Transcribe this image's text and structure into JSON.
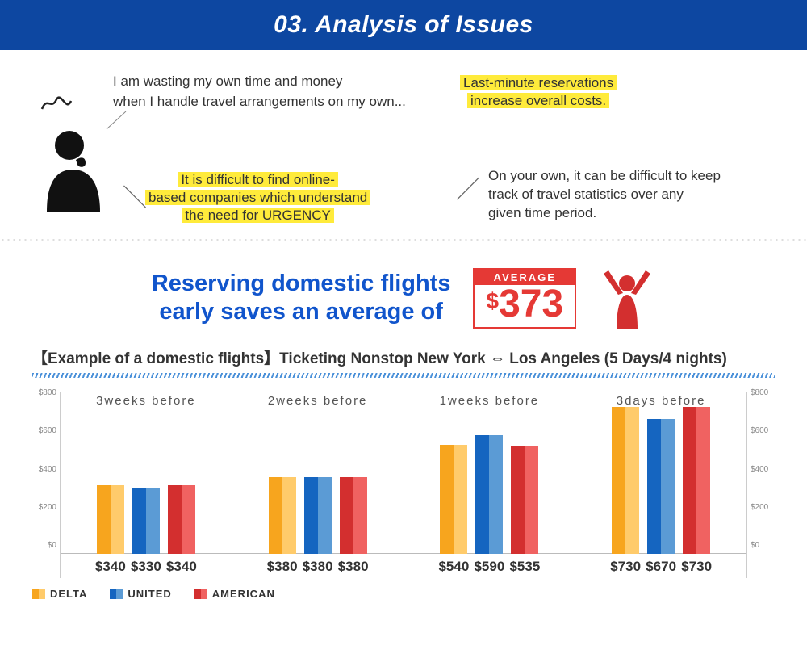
{
  "header": {
    "title": "03. Analysis of Issues"
  },
  "issues": {
    "speech1_l1": "I am wasting my own time and money",
    "speech1_l2": "when I handle travel arrangements on my own...",
    "speech2_l1": "It is difficult to find online-",
    "speech2_l2": "based companies which understand",
    "speech2_l3": "the need for URGENCY",
    "speech3_l1": "Last-minute reservations",
    "speech3_l2": "increase overall costs.",
    "speech4_l1": "On your own, it can be difficult to keep",
    "speech4_l2": "track of travel statistics over any",
    "speech4_l3": "given time period."
  },
  "savings": {
    "line1": "Reserving domestic flights",
    "line2": "early saves an average of",
    "badge_label": "AVERAGE",
    "currency": "$",
    "amount": "373"
  },
  "example": {
    "heading": "【Example of a domestic flights】Ticketing Nonstop New York ⇔ Los Angeles (5 Days/4 nights)"
  },
  "chart": {
    "type": "bar",
    "ymax": 800,
    "ytick_step": 200,
    "yticks": [
      "$800",
      "$600",
      "$400",
      "$200",
      "$0"
    ],
    "series_colors": {
      "delta": "#f7a51e",
      "united": "#1565c0",
      "american": "#d32f2f"
    },
    "groups": [
      {
        "title": "3weeks before",
        "bars": [
          {
            "series": "delta",
            "value": 340,
            "label": "$340"
          },
          {
            "series": "united",
            "value": 330,
            "label": "$330"
          },
          {
            "series": "american",
            "value": 340,
            "label": "$340"
          }
        ]
      },
      {
        "title": "2weeks before",
        "bars": [
          {
            "series": "delta",
            "value": 380,
            "label": "$380"
          },
          {
            "series": "united",
            "value": 380,
            "label": "$380"
          },
          {
            "series": "american",
            "value": 380,
            "label": "$380"
          }
        ]
      },
      {
        "title": "1weeks before",
        "bars": [
          {
            "series": "delta",
            "value": 540,
            "label": "$540"
          },
          {
            "series": "united",
            "value": 590,
            "label": "$590"
          },
          {
            "series": "american",
            "value": 535,
            "label": "$535"
          }
        ]
      },
      {
        "title": "3days before",
        "bars": [
          {
            "series": "delta",
            "value": 730,
            "label": "$730"
          },
          {
            "series": "united",
            "value": 670,
            "label": "$670"
          },
          {
            "series": "american",
            "value": 730,
            "label": "$730"
          }
        ]
      }
    ]
  },
  "legend": {
    "delta": "DELTA",
    "united": "UNITED",
    "american": "AMERICAN"
  }
}
